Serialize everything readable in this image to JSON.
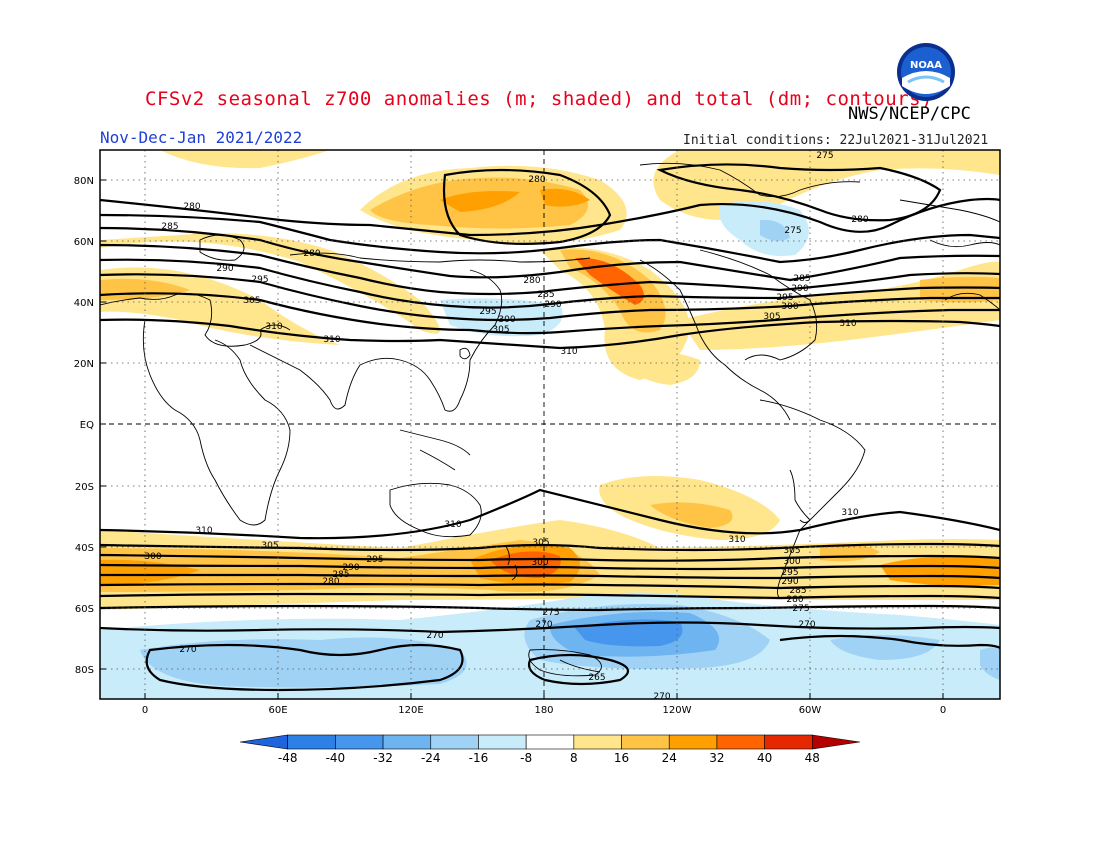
{
  "header": {
    "title": "CFSv2 seasonal z700 anomalies (m; shaded) and total (dm; contours)",
    "agency": "NWS/NCEP/CPC",
    "period": "Nov-Dec-Jan 2021/2022",
    "initial_conditions": "Initial conditions: 22Jul2021-31Jul2021",
    "logo_text": "NOAA"
  },
  "axes": {
    "lat_labels": [
      "80N",
      "60N",
      "40N",
      "20N",
      "EQ",
      "20S",
      "40S",
      "60S",
      "80S"
    ],
    "lon_labels": [
      "0",
      "60E",
      "120E",
      "180",
      "120W",
      "60W",
      "0"
    ]
  },
  "colorbar": {
    "labels": [
      "-48",
      "-40",
      "-32",
      "-24",
      "-16",
      "-8",
      "8",
      "16",
      "24",
      "32",
      "40",
      "48"
    ],
    "colors": [
      "#1e64dc",
      "#2d80e6",
      "#4696ee",
      "#6eb4f0",
      "#a0d2f6",
      "#c8ecfa",
      "#ffffff",
      "#ffe68c",
      "#ffc346",
      "#ffa000",
      "#ff6400",
      "#e62800",
      "#b40000"
    ]
  },
  "contour_labels": [
    {
      "text": "275"
    },
    {
      "text": "280"
    },
    {
      "text": "280"
    },
    {
      "text": "285"
    },
    {
      "text": "280"
    },
    {
      "text": "290"
    },
    {
      "text": "295"
    },
    {
      "text": "300"
    },
    {
      "text": "305"
    },
    {
      "text": "310"
    },
    {
      "text": "310"
    },
    {
      "text": "280"
    },
    {
      "text": "285"
    },
    {
      "text": "290"
    },
    {
      "text": "295"
    },
    {
      "text": "300"
    },
    {
      "text": "305"
    },
    {
      "text": "310"
    },
    {
      "text": "275"
    },
    {
      "text": "280"
    },
    {
      "text": "285"
    },
    {
      "text": "290"
    },
    {
      "text": "295"
    },
    {
      "text": "300"
    },
    {
      "text": "305"
    },
    {
      "text": "310"
    },
    {
      "text": "310"
    },
    {
      "text": "310"
    },
    {
      "text": "310"
    },
    {
      "text": "310"
    },
    {
      "text": "300"
    },
    {
      "text": "305"
    },
    {
      "text": "295"
    },
    {
      "text": "290"
    },
    {
      "text": "285"
    },
    {
      "text": "280"
    },
    {
      "text": "305"
    },
    {
      "text": "300"
    },
    {
      "text": "305"
    },
    {
      "text": "300"
    },
    {
      "text": "295"
    },
    {
      "text": "290"
    },
    {
      "text": "285"
    },
    {
      "text": "280"
    },
    {
      "text": "275"
    },
    {
      "text": "270"
    },
    {
      "text": "275"
    },
    {
      "text": "270"
    },
    {
      "text": "270"
    },
    {
      "text": "270"
    },
    {
      "text": "265"
    },
    {
      "text": "270"
    }
  ]
}
